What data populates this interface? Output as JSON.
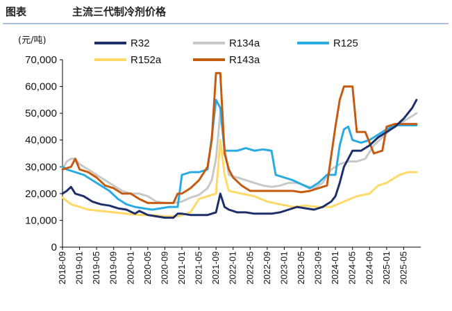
{
  "figure": {
    "label": "图表",
    "title": "主流三代制冷剂价格",
    "unit": "(元/吨)"
  },
  "chart_data": {
    "type": "line",
    "title": "主流三代制冷剂价格",
    "ylabel": "(元/吨)",
    "xlabel": "",
    "ylim": [
      0,
      70000
    ],
    "yticks": [
      0,
      10000,
      20000,
      30000,
      40000,
      50000,
      60000,
      70000
    ],
    "ytick_labels": [
      "0",
      "10,000",
      "20,000",
      "30,000",
      "40,000",
      "50,000",
      "60,000",
      "70,000"
    ],
    "x_range": [
      "2018-09",
      "2025-09"
    ],
    "xtick_labels": [
      "2018-09",
      "2019-01",
      "2019-05",
      "2019-09",
      "2020-01",
      "2020-05",
      "2020-09",
      "2021-01",
      "2021-05",
      "2021-09",
      "2022-01",
      "2022-05",
      "2022-09",
      "2023-01",
      "2023-05",
      "2023-09",
      "2024-01",
      "2024-05",
      "2024-09",
      "2025-01",
      "2025-05"
    ],
    "legend": {
      "placement": "top",
      "order": [
        "R32",
        "R134a",
        "R125",
        "R152a",
        "R143a"
      ]
    },
    "series": [
      {
        "name": "R32",
        "color": "#1c2f6b",
        "points": [
          [
            "2018-09",
            20000
          ],
          [
            "2018-10",
            21000
          ],
          [
            "2018-11",
            22500
          ],
          [
            "2018-12",
            20000
          ],
          [
            "2019-02",
            19000
          ],
          [
            "2019-04",
            17000
          ],
          [
            "2019-06",
            16000
          ],
          [
            "2019-08",
            15500
          ],
          [
            "2019-10",
            14500
          ],
          [
            "2019-12",
            14000
          ],
          [
            "2020-02",
            12500
          ],
          [
            "2020-03",
            13500
          ],
          [
            "2020-05",
            12000
          ],
          [
            "2020-07",
            11500
          ],
          [
            "2020-09",
            11000
          ],
          [
            "2020-11",
            11000
          ],
          [
            "2020-12",
            12500
          ],
          [
            "2021-01",
            12500
          ],
          [
            "2021-03",
            12000
          ],
          [
            "2021-05",
            12000
          ],
          [
            "2021-07",
            12000
          ],
          [
            "2021-08",
            12500
          ],
          [
            "2021-09",
            13000
          ],
          [
            "2021-10",
            20000
          ],
          [
            "2021-11",
            15000
          ],
          [
            "2021-12",
            14000
          ],
          [
            "2022-02",
            13000
          ],
          [
            "2022-04",
            13000
          ],
          [
            "2022-06",
            12500
          ],
          [
            "2022-08",
            12500
          ],
          [
            "2022-10",
            12500
          ],
          [
            "2022-12",
            13000
          ],
          [
            "2023-02",
            14000
          ],
          [
            "2023-04",
            15000
          ],
          [
            "2023-06",
            14500
          ],
          [
            "2023-08",
            14000
          ],
          [
            "2023-10",
            15000
          ],
          [
            "2023-12",
            17000
          ],
          [
            "2024-01",
            19000
          ],
          [
            "2024-02",
            24000
          ],
          [
            "2024-03",
            30000
          ],
          [
            "2024-04",
            33000
          ],
          [
            "2024-05",
            36000
          ],
          [
            "2024-07",
            36000
          ],
          [
            "2024-09",
            38000
          ],
          [
            "2024-11",
            41000
          ],
          [
            "2025-01",
            43000
          ],
          [
            "2025-03",
            45000
          ],
          [
            "2025-05",
            48000
          ],
          [
            "2025-07",
            52000
          ],
          [
            "2025-08",
            55000
          ]
        ]
      },
      {
        "name": "R134a",
        "color": "#c8c8c8",
        "points": [
          [
            "2018-09",
            29000
          ],
          [
            "2018-10",
            32000
          ],
          [
            "2018-11",
            33000
          ],
          [
            "2018-12",
            33000
          ],
          [
            "2019-01",
            31000
          ],
          [
            "2019-03",
            29000
          ],
          [
            "2019-05",
            27000
          ],
          [
            "2019-07",
            25000
          ],
          [
            "2019-09",
            23000
          ],
          [
            "2019-11",
            21000
          ],
          [
            "2020-01",
            20000
          ],
          [
            "2020-03",
            20000
          ],
          [
            "2020-05",
            19000
          ],
          [
            "2020-07",
            17000
          ],
          [
            "2020-09",
            16500
          ],
          [
            "2020-11",
            16500
          ],
          [
            "2021-01",
            17000
          ],
          [
            "2021-03",
            18500
          ],
          [
            "2021-05",
            19500
          ],
          [
            "2021-07",
            22000
          ],
          [
            "2021-08",
            25000
          ],
          [
            "2021-09",
            33000
          ],
          [
            "2021-10",
            50000
          ],
          [
            "2021-11",
            38000
          ],
          [
            "2021-12",
            27000
          ],
          [
            "2022-02",
            26000
          ],
          [
            "2022-04",
            25000
          ],
          [
            "2022-06",
            24000
          ],
          [
            "2022-08",
            23000
          ],
          [
            "2022-10",
            22500
          ],
          [
            "2022-12",
            23000
          ],
          [
            "2023-02",
            24000
          ],
          [
            "2023-04",
            24000
          ],
          [
            "2023-06",
            23000
          ],
          [
            "2023-08",
            22000
          ],
          [
            "2023-10",
            24000
          ],
          [
            "2023-12",
            29000
          ],
          [
            "2024-02",
            31000
          ],
          [
            "2024-04",
            32000
          ],
          [
            "2024-06",
            32000
          ],
          [
            "2024-08",
            33000
          ],
          [
            "2024-10",
            38000
          ],
          [
            "2024-12",
            41000
          ],
          [
            "2025-02",
            44000
          ],
          [
            "2025-04",
            46000
          ],
          [
            "2025-06",
            48000
          ],
          [
            "2025-08",
            50000
          ]
        ]
      },
      {
        "name": "R125",
        "color": "#29abe2",
        "points": [
          [
            "2018-09",
            30000
          ],
          [
            "2018-10",
            29000
          ],
          [
            "2018-12",
            28000
          ],
          [
            "2019-02",
            27000
          ],
          [
            "2019-04",
            25000
          ],
          [
            "2019-06",
            23000
          ],
          [
            "2019-08",
            21000
          ],
          [
            "2019-10",
            18000
          ],
          [
            "2019-12",
            16000
          ],
          [
            "2020-02",
            15000
          ],
          [
            "2020-04",
            14500
          ],
          [
            "2020-06",
            14000
          ],
          [
            "2020-08",
            14500
          ],
          [
            "2020-10",
            15000
          ],
          [
            "2020-12",
            15000
          ],
          [
            "2021-01",
            27000
          ],
          [
            "2021-03",
            28000
          ],
          [
            "2021-05",
            28000
          ],
          [
            "2021-07",
            29000
          ],
          [
            "2021-08",
            41000
          ],
          [
            "2021-09",
            55000
          ],
          [
            "2021-10",
            52000
          ],
          [
            "2021-11",
            36000
          ],
          [
            "2021-12",
            36000
          ],
          [
            "2022-02",
            36000
          ],
          [
            "2022-04",
            37000
          ],
          [
            "2022-06",
            36000
          ],
          [
            "2022-08",
            36500
          ],
          [
            "2022-10",
            36000
          ],
          [
            "2022-11",
            27000
          ],
          [
            "2023-01",
            26000
          ],
          [
            "2023-03",
            25000
          ],
          [
            "2023-05",
            23500
          ],
          [
            "2023-07",
            22000
          ],
          [
            "2023-09",
            24000
          ],
          [
            "2023-11",
            27000
          ],
          [
            "2024-01",
            27000
          ],
          [
            "2024-02",
            38000
          ],
          [
            "2024-03",
            44000
          ],
          [
            "2024-04",
            45000
          ],
          [
            "2024-05",
            40000
          ],
          [
            "2024-07",
            39000
          ],
          [
            "2024-09",
            40000
          ],
          [
            "2024-11",
            42000
          ],
          [
            "2025-01",
            44000
          ],
          [
            "2025-03",
            45500
          ],
          [
            "2025-05",
            45500
          ],
          [
            "2025-08",
            45500
          ]
        ]
      },
      {
        "name": "R152a",
        "color": "#ffd966",
        "points": [
          [
            "2018-09",
            18500
          ],
          [
            "2018-11",
            16000
          ],
          [
            "2019-01",
            15000
          ],
          [
            "2019-03",
            14000
          ],
          [
            "2019-06",
            13500
          ],
          [
            "2019-09",
            13000
          ],
          [
            "2019-12",
            12500
          ],
          [
            "2020-03",
            12000
          ],
          [
            "2020-06",
            12000
          ],
          [
            "2020-09",
            11500
          ],
          [
            "2020-12",
            11500
          ],
          [
            "2021-03",
            13000
          ],
          [
            "2021-05",
            18000
          ],
          [
            "2021-07",
            19000
          ],
          [
            "2021-09",
            20000
          ],
          [
            "2021-10",
            40000
          ],
          [
            "2021-11",
            27000
          ],
          [
            "2021-12",
            21000
          ],
          [
            "2022-03",
            20000
          ],
          [
            "2022-06",
            19000
          ],
          [
            "2022-09",
            17000
          ],
          [
            "2022-12",
            16000
          ],
          [
            "2023-03",
            15000
          ],
          [
            "2023-06",
            15500
          ],
          [
            "2023-09",
            15000
          ],
          [
            "2023-12",
            15000
          ],
          [
            "2024-03",
            17000
          ],
          [
            "2024-06",
            19000
          ],
          [
            "2024-09",
            20000
          ],
          [
            "2024-11",
            23000
          ],
          [
            "2025-01",
            24000
          ],
          [
            "2025-04",
            27000
          ],
          [
            "2025-06",
            28000
          ],
          [
            "2025-08",
            28000
          ]
        ]
      },
      {
        "name": "R143a",
        "color": "#c55a11",
        "points": [
          [
            "2018-09",
            29000
          ],
          [
            "2018-11",
            30000
          ],
          [
            "2018-12",
            33000
          ],
          [
            "2019-01",
            29000
          ],
          [
            "2019-03",
            28000
          ],
          [
            "2019-05",
            26000
          ],
          [
            "2019-07",
            23000
          ],
          [
            "2019-09",
            22000
          ],
          [
            "2019-11",
            20000
          ],
          [
            "2020-01",
            20000
          ],
          [
            "2020-03",
            18000
          ],
          [
            "2020-05",
            16500
          ],
          [
            "2020-07",
            16500
          ],
          [
            "2020-09",
            16500
          ],
          [
            "2020-11",
            16500
          ],
          [
            "2020-12",
            20000
          ],
          [
            "2021-01",
            20000
          ],
          [
            "2021-03",
            22000
          ],
          [
            "2021-05",
            25000
          ],
          [
            "2021-07",
            30000
          ],
          [
            "2021-08",
            40000
          ],
          [
            "2021-09",
            65000
          ],
          [
            "2021-10",
            65000
          ],
          [
            "2021-11",
            35000
          ],
          [
            "2021-12",
            29000
          ],
          [
            "2022-01",
            26000
          ],
          [
            "2022-03",
            23000
          ],
          [
            "2022-05",
            21000
          ],
          [
            "2022-07",
            21000
          ],
          [
            "2022-09",
            21000
          ],
          [
            "2022-11",
            21000
          ],
          [
            "2023-01",
            21000
          ],
          [
            "2023-03",
            21000
          ],
          [
            "2023-05",
            20500
          ],
          [
            "2023-07",
            21000
          ],
          [
            "2023-09",
            22000
          ],
          [
            "2023-11",
            23000
          ],
          [
            "2024-01",
            45000
          ],
          [
            "2024-02",
            55000
          ],
          [
            "2024-03",
            60000
          ],
          [
            "2024-05",
            60000
          ],
          [
            "2024-06",
            43000
          ],
          [
            "2024-08",
            43000
          ],
          [
            "2024-10",
            35000
          ],
          [
            "2024-12",
            36000
          ],
          [
            "2025-01",
            45000
          ],
          [
            "2025-03",
            46000
          ],
          [
            "2025-05",
            46000
          ],
          [
            "2025-08",
            46000
          ]
        ]
      }
    ]
  }
}
